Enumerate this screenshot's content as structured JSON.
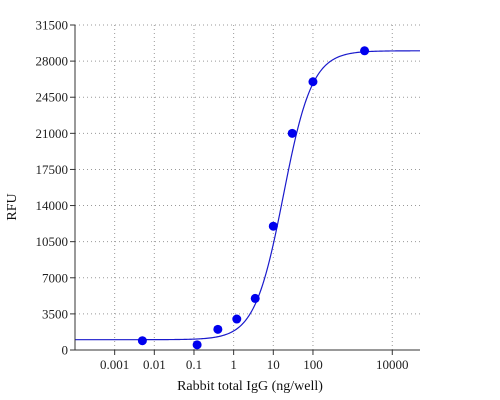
{
  "chart_data": {
    "type": "scatter",
    "title": "",
    "xlabel": "Rabbit total IgG (ng/well)",
    "ylabel": "RFU",
    "x_scale": "log",
    "xlim": [
      0.0001,
      50000
    ],
    "ylim": [
      0,
      31500
    ],
    "x_ticks": [
      0.001,
      0.01,
      0.1,
      1,
      10,
      100,
      10000
    ],
    "x_tick_labels": [
      "0.001",
      "0.01",
      "0.1",
      "1",
      "10",
      "100",
      "10000"
    ],
    "y_ticks": [
      0,
      3500,
      7000,
      10500,
      14000,
      17500,
      21000,
      24500,
      28000,
      31500
    ],
    "y_tick_labels": [
      "0",
      "3500",
      "7000",
      "10500",
      "14000",
      "17500",
      "21000",
      "24500",
      "28000",
      "31500"
    ],
    "grid": true,
    "legend": "none",
    "colors": {
      "marker": "#0000ee",
      "curve": "#1a1acc",
      "axis": "#333333",
      "grid": "#999999"
    },
    "series": [
      {
        "marker": "circle",
        "x": [
          0.005,
          0.12,
          0.4,
          1.2,
          3.5,
          10,
          30,
          100,
          2000
        ],
        "y": [
          900,
          500,
          2000,
          3000,
          5000,
          12000,
          21000,
          26000,
          29000
        ]
      }
    ],
    "fit_curve": {
      "type": "4PL",
      "bottom": 1000,
      "top": 29000,
      "ec50": 18,
      "hill": 1.2
    }
  }
}
